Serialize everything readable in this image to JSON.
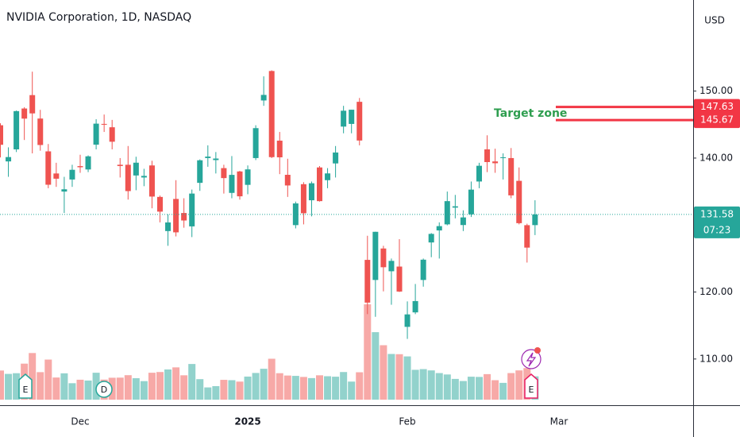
{
  "chart_data": {
    "type": "candlestick",
    "title": "NVIDIA Corporation, 1D, NASDAQ",
    "currency": "USD",
    "up_color": "#26a69a",
    "down_color": "#ef5350",
    "categories": [
      null,
      null,
      null,
      null,
      null,
      null,
      null,
      null,
      null,
      null,
      "Dec",
      null,
      null,
      null,
      null,
      null,
      null,
      null,
      null,
      null,
      null,
      null,
      null,
      null,
      null,
      null,
      null,
      null,
      null,
      null,
      null,
      "2025",
      null,
      null,
      null,
      null,
      null,
      null,
      null,
      null,
      null,
      null,
      null,
      null,
      null,
      null,
      null,
      null,
      null,
      null,
      null,
      "Feb",
      null,
      null,
      null,
      null,
      null,
      null,
      null,
      null,
      null,
      null,
      null,
      null,
      null,
      null,
      null,
      null,
      null,
      null,
      "Mar"
    ],
    "open": [
      144.9,
      139.5,
      141.3,
      147.4,
      149.4,
      145.9,
      141.0,
      137.7,
      135.0,
      136.8,
      138.8,
      138.3,
      142.0,
      145.1,
      144.6,
      139.0,
      139.0,
      137.4,
      137.1,
      138.9,
      134.2,
      129.1,
      133.9,
      131.8,
      129.8,
      136.3,
      140.0,
      139.7,
      138.5,
      134.8,
      138.0,
      136.0,
      140.0,
      148.6,
      153.0,
      142.6,
      137.5,
      129.99,
      136.1,
      133.7,
      138.6,
      136.7,
      139.2,
      144.7,
      145.1,
      148.4,
      124.8,
      121.8,
      126.5,
      123.1,
      123.8,
      114.8,
      116.96,
      121.8,
      127.4,
      129.2,
      130.1,
      132.6,
      130.0,
      131.6,
      136.5,
      141.3,
      139.5,
      140.0,
      140.0,
      136.6,
      129.98,
      129.99,
      null,
      null,
      null
    ],
    "high": [
      145.2,
      141.6,
      147.1,
      147.6,
      152.9,
      147.2,
      142.1,
      139.3,
      137.2,
      139.0,
      140.5,
      140.4,
      145.8,
      146.5,
      145.7,
      140.0,
      141.8,
      140.2,
      138.4,
      139.6,
      134.4,
      131.6,
      136.7,
      134.0,
      135.3,
      139.8,
      141.9,
      140.9,
      139.0,
      140.3,
      138.1,
      138.9,
      144.9,
      152.2,
      153.1,
      143.9,
      139.9,
      133.5,
      136.4,
      136.5,
      138.8,
      138.5,
      141.8,
      147.8,
      147.2,
      148.97,
      128.4,
      129.0,
      126.9,
      125.0,
      127.9,
      118.6,
      121.2,
      125.0,
      128.8,
      130.4,
      135.0,
      134.5,
      132.2,
      136.5,
      139.3,
      143.4,
      141.4,
      140.7,
      141.5,
      138.6,
      130.2,
      133.7,
      null,
      null,
      null
    ],
    "low": [
      140.1,
      137.2,
      140.9,
      142.7,
      140.7,
      141.1,
      135.5,
      135.7,
      131.8,
      135.7,
      137.8,
      137.9,
      141.3,
      143.9,
      141.3,
      137.1,
      133.8,
      135.2,
      135.8,
      132.5,
      130.4,
      126.9,
      128.3,
      129.6,
      128.2,
      135.1,
      138.7,
      137.7,
      134.7,
      134.0,
      133.8,
      134.6,
      139.7,
      147.8,
      140.0,
      137.6,
      134.2,
      129.5,
      130.1,
      131.3,
      133.5,
      135.5,
      137.1,
      143.7,
      143.7,
      141.9,
      116.7,
      116.3,
      120.1,
      118.1,
      120.0,
      113.0,
      116.7,
      120.8,
      125.2,
      125.0,
      129.96,
      131.0,
      129.1,
      131.2,
      135.5,
      137.9,
      137.8,
      136.8,
      134.0,
      130.1,
      124.4,
      128.5,
      null,
      null,
      null
    ],
    "close": [
      141.98,
      140.15,
      147.01,
      145.89,
      146.67,
      141.95,
      136.02,
      136.92,
      135.34,
      138.25,
      138.63,
      140.26,
      145.14,
      145.06,
      142.44,
      138.81,
      135.07,
      139.31,
      137.34,
      134.25,
      132.0,
      130.39,
      128.91,
      130.68,
      134.7,
      139.67,
      140.22,
      139.93,
      137.01,
      137.49,
      134.29,
      138.31,
      144.47,
      149.43,
      140.14,
      140.11,
      135.91,
      133.23,
      131.76,
      136.24,
      133.57,
      137.71,
      140.83,
      147.07,
      147.22,
      142.62,
      118.42,
      128.99,
      123.7,
      124.65,
      120.07,
      116.66,
      118.65,
      124.83,
      128.68,
      129.84,
      133.57,
      132.8,
      131.14,
      135.29,
      138.85,
      139.4,
      139.23,
      140.11,
      134.43,
      130.28,
      126.63,
      131.58,
      null,
      null,
      null
    ],
    "volume": [
      250,
      221,
      227,
      309,
      400,
      236,
      344,
      190,
      226,
      141,
      171,
      164,
      231,
      172,
      188,
      189,
      210,
      184,
      159,
      231,
      237,
      259,
      277,
      209,
      306,
      176,
      105,
      116,
      170,
      167,
      155,
      198,
      229,
      265,
      351,
      227,
      207,
      204,
      195,
      185,
      209,
      201,
      197,
      237,
      155,
      235,
      818,
      579,
      467,
      392,
      390,
      371,
      256,
      262,
      251,
      228,
      216,
      178,
      160,
      197,
      195,
      219,
      167,
      144,
      228,
      251,
      271,
      200,
      null,
      null,
      null
    ],
    "ylim": [
      103.1,
      163.6
    ],
    "yticks": [
      {
        "value": 110,
        "label": "110.00"
      },
      {
        "value": 120,
        "label": "120.00"
      },
      {
        "value": 140,
        "label": "140.00"
      },
      {
        "value": 150,
        "label": "150.00"
      }
    ],
    "levels": [
      147.63,
      145.67
    ],
    "level_color": "#f23645",
    "annotation": "Target zone",
    "last_price": 131.58,
    "countdown": "07:23",
    "events": [
      "E",
      "D",
      "E"
    ]
  }
}
